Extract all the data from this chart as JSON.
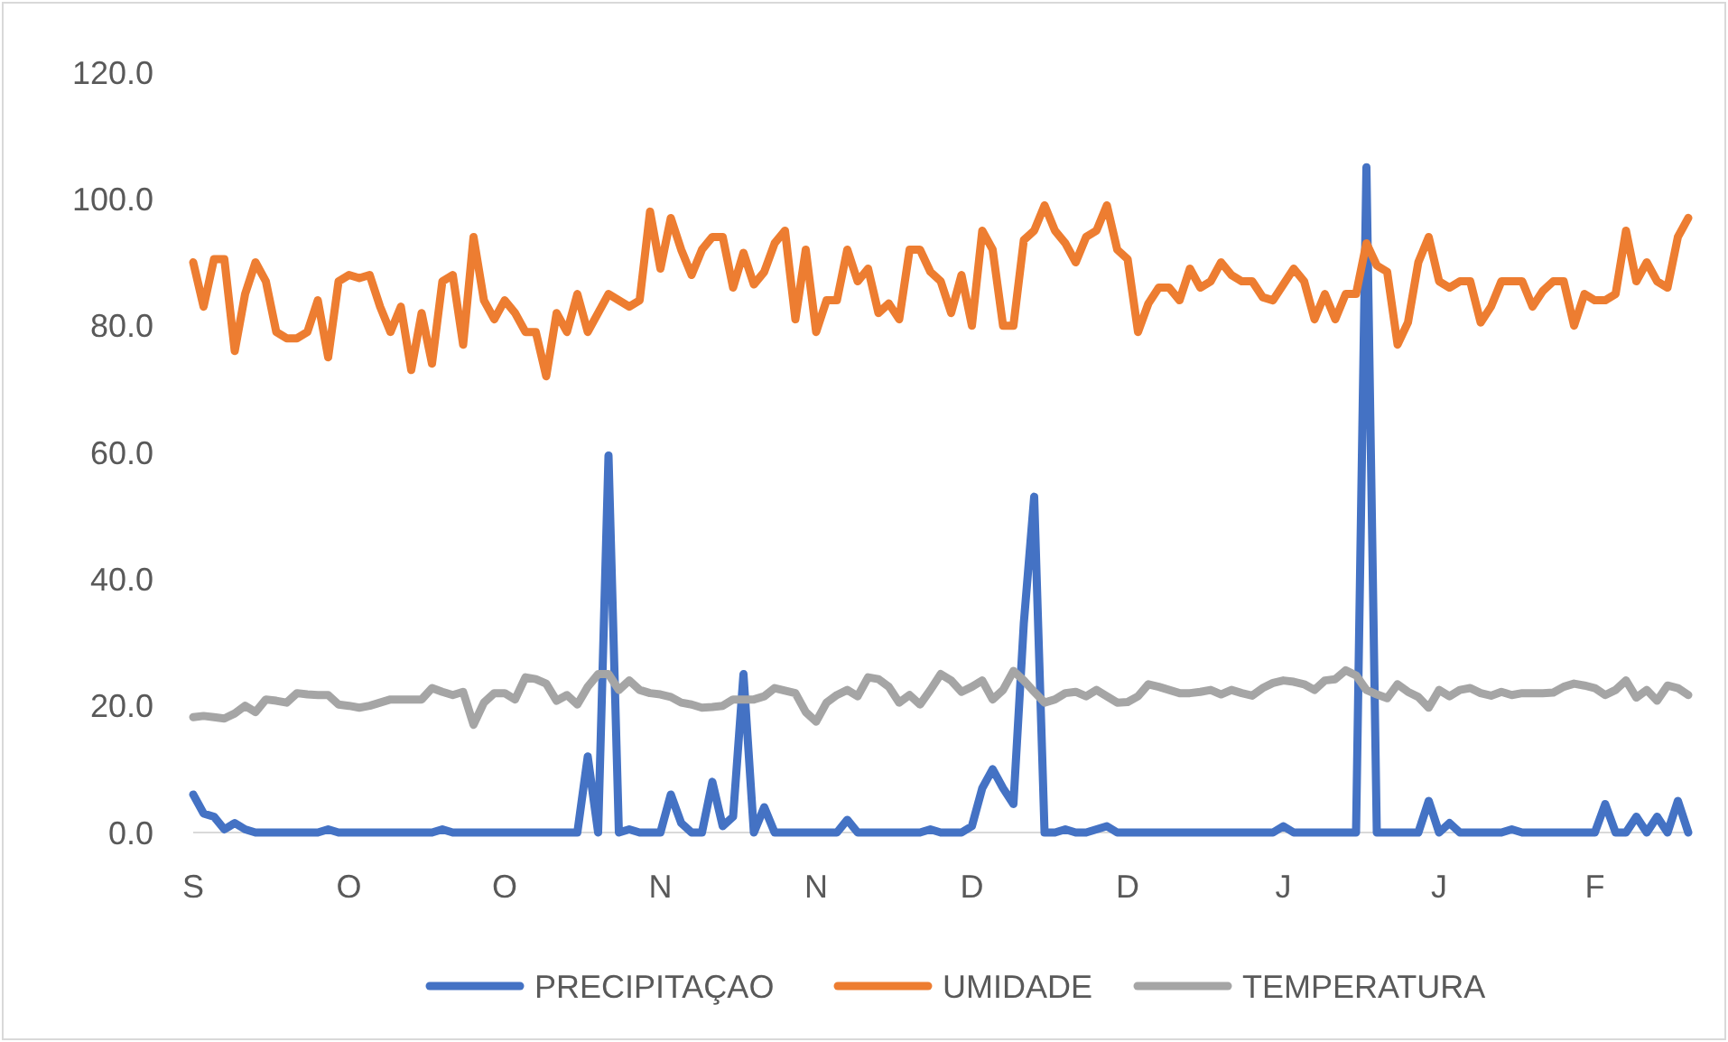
{
  "chart_data": {
    "type": "line",
    "categories": [
      "S",
      null,
      null,
      null,
      null,
      null,
      null,
      null,
      null,
      null,
      null,
      null,
      null,
      null,
      null,
      "O",
      null,
      null,
      null,
      null,
      null,
      null,
      null,
      null,
      null,
      null,
      null,
      null,
      null,
      null,
      "O",
      null,
      null,
      null,
      null,
      null,
      null,
      null,
      null,
      null,
      null,
      null,
      null,
      null,
      null,
      "N",
      null,
      null,
      null,
      null,
      null,
      null,
      null,
      null,
      null,
      null,
      null,
      null,
      null,
      null,
      "N",
      null,
      null,
      null,
      null,
      null,
      null,
      null,
      null,
      null,
      null,
      null,
      null,
      null,
      null,
      "D",
      null,
      null,
      null,
      null,
      null,
      null,
      null,
      null,
      null,
      null,
      null,
      null,
      null,
      null,
      "D",
      null,
      null,
      null,
      null,
      null,
      null,
      null,
      null,
      null,
      null,
      null,
      null,
      null,
      null,
      "J",
      null,
      null,
      null,
      null,
      null,
      null,
      null,
      null,
      null,
      null,
      null,
      null,
      null,
      null,
      "J",
      null,
      null,
      null,
      null,
      null,
      null,
      null,
      null,
      null,
      null,
      null,
      null,
      null,
      null,
      "F",
      null,
      null,
      null,
      null,
      null,
      null,
      null,
      null,
      null
    ],
    "series": [
      {
        "name": "PRECIPITAÇAO",
        "color": "#4472c4",
        "values": [
          6,
          3,
          2.5,
          0.5,
          1.5,
          0.5,
          0,
          0,
          0,
          0,
          0,
          0,
          0,
          0.5,
          0,
          0,
          0,
          0,
          0,
          0,
          0,
          0,
          0,
          0,
          0.5,
          0,
          0,
          0,
          0,
          0,
          0,
          0,
          0,
          0,
          0,
          0,
          0,
          0,
          12,
          0,
          59.5,
          0,
          0.5,
          0,
          0,
          0,
          6,
          1.5,
          0,
          0,
          8,
          1,
          2.5,
          25,
          0,
          4,
          0,
          0,
          0,
          0,
          0,
          0,
          0,
          2,
          0,
          0,
          0,
          0,
          0,
          0,
          0,
          0.5,
          0,
          0,
          0,
          1,
          7,
          10,
          7,
          4.5,
          33,
          53,
          0,
          0,
          0.5,
          0,
          0,
          0.5,
          1,
          0,
          0,
          0,
          0,
          0,
          0,
          0,
          0,
          0,
          0,
          0,
          0,
          0,
          0,
          0,
          0,
          1,
          0,
          0,
          0,
          0,
          0,
          0,
          0,
          105,
          0,
          0,
          0,
          0,
          0,
          5,
          0,
          1.5,
          0,
          0,
          0,
          0,
          0,
          0.5,
          0,
          0,
          0,
          0,
          0,
          0,
          0,
          0,
          4.5,
          0,
          0,
          2.5,
          0,
          2.5,
          0,
          5,
          0
        ]
      },
      {
        "name": "UMIDADE",
        "color": "#ed7d31",
        "values": [
          90,
          83,
          90.5,
          90.5,
          76,
          85,
          90,
          87,
          79,
          78,
          78,
          79,
          84,
          75,
          87,
          88,
          87.5,
          88,
          83,
          79,
          83,
          73,
          82,
          74,
          87,
          88,
          77,
          94,
          84,
          81,
          84,
          82,
          79,
          79,
          72,
          82,
          79,
          85,
          79,
          82,
          85,
          84,
          83,
          84,
          98,
          89,
          97,
          92,
          88,
          92,
          94,
          94,
          86,
          91.5,
          86.5,
          88.5,
          93,
          95,
          81,
          92,
          79,
          84,
          84,
          92,
          87,
          89,
          82,
          83.5,
          81,
          92,
          92,
          88.5,
          87,
          82,
          88,
          80,
          95,
          92,
          80,
          80,
          93.5,
          95,
          99,
          95,
          93,
          90,
          94,
          95,
          99,
          92,
          90.5,
          79,
          83.5,
          86,
          86,
          84,
          89,
          86,
          87,
          90,
          88,
          87,
          87,
          84.5,
          84,
          86.5,
          89,
          87,
          81,
          85,
          81,
          85,
          85,
          93,
          89.5,
          88.5,
          77,
          80.5,
          90,
          94,
          87,
          86,
          87,
          87,
          80.5,
          83,
          87,
          87,
          87,
          83,
          85.5,
          87,
          87,
          80,
          85,
          84,
          84,
          85,
          95,
          87,
          90,
          87,
          86,
          94,
          97
        ]
      },
      {
        "name": "TEMPERATURA",
        "color": "#a5a5a5",
        "values": [
          18.2,
          18.4,
          18.2,
          18,
          18.8,
          20,
          19,
          21,
          20.8,
          20.5,
          22,
          21.8,
          21.7,
          21.7,
          20.2,
          20,
          19.7,
          20,
          20.5,
          21,
          21,
          21,
          21,
          22.8,
          22.2,
          21.7,
          22.2,
          17,
          20.5,
          22,
          22,
          21,
          24.5,
          24.2,
          23.5,
          20.8,
          21.7,
          20.2,
          23,
          25,
          25,
          22.5,
          24,
          22.5,
          22,
          21.8,
          21.4,
          20.5,
          20.2,
          19.7,
          19.8,
          20,
          21,
          21,
          21,
          21.5,
          22.8,
          22.4,
          22,
          19,
          17.5,
          20.5,
          21.7,
          22.5,
          21.5,
          24.5,
          24.2,
          23,
          20.5,
          21.7,
          20.2,
          22.5,
          25,
          24,
          22.2,
          23,
          24,
          21,
          22.5,
          25.5,
          24,
          22.2,
          20.5,
          21,
          22,
          22.2,
          21.5,
          22.5,
          21.5,
          20.5,
          20.6,
          21.5,
          23.4,
          23,
          22.5,
          22,
          22,
          22.2,
          22.5,
          21.8,
          22.5,
          22,
          21.6,
          22.8,
          23.6,
          24,
          23.8,
          23.4,
          22.5,
          24,
          24.2,
          25.6,
          24.8,
          22.5,
          21.8,
          21.2,
          23.4,
          22.2,
          21.4,
          19.7,
          22.5,
          21.5,
          22.5,
          22.8,
          22,
          21.6,
          22.2,
          21.7,
          22,
          22,
          22,
          22.1,
          23,
          23.5,
          23.2,
          22.8,
          21.7,
          22.5,
          24,
          21.3,
          22.5,
          20.8,
          23.2,
          22.8,
          21.7
        ]
      }
    ],
    "ylim": [
      0,
      120
    ],
    "yticks": [
      {
        "value": 0,
        "label": "0.0"
      },
      {
        "value": 20,
        "label": "20.0"
      },
      {
        "value": 40,
        "label": "40.0"
      },
      {
        "value": 60,
        "label": "60.0"
      },
      {
        "value": 80,
        "label": "80.0"
      },
      {
        "value": 100,
        "label": "100.0"
      },
      {
        "value": 120,
        "label": "120.0"
      }
    ],
    "legend": "bottom",
    "marker": "none",
    "line_style": "solid"
  }
}
